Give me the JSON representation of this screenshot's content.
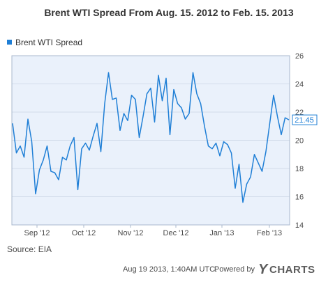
{
  "chart_data": {
    "type": "line",
    "title": "Brent WTI Spread From Aug. 15. 2012 to Feb. 15. 2013",
    "legend": {
      "label": "Brent WTI Spread",
      "position": "top-left"
    },
    "series": [
      {
        "name": "Brent WTI Spread",
        "color": "#1f7fd6",
        "values": [
          21.2,
          19.1,
          19.6,
          18.8,
          21.5,
          19.9,
          16.2,
          17.9,
          18.6,
          19.6,
          17.8,
          17.7,
          17.2,
          18.8,
          18.6,
          19.6,
          20.2,
          16.5,
          19.4,
          19.8,
          19.3,
          20.3,
          21.2,
          19.2,
          22.6,
          24.8,
          22.9,
          23.0,
          20.7,
          21.9,
          21.4,
          23.2,
          22.9,
          20.2,
          21.7,
          23.3,
          23.7,
          21.3,
          24.6,
          22.8,
          24.4,
          20.4,
          23.6,
          22.6,
          22.3,
          21.5,
          21.9,
          24.8,
          23.3,
          22.6,
          21.0,
          19.6,
          19.4,
          19.8,
          18.9,
          19.9,
          19.7,
          19.1,
          16.6,
          18.3,
          15.6,
          16.9,
          17.4,
          19.0,
          18.4,
          17.8,
          19.2,
          21.2,
          23.2,
          21.7,
          20.4,
          21.6,
          21.45
        ]
      }
    ],
    "x_tick_labels": [
      "Sep '12",
      "Oct '12",
      "Nov '12",
      "Dec '12",
      "Jan '13",
      "Feb '13"
    ],
    "y_tick_labels": [
      "14",
      "16",
      "18",
      "20",
      "22",
      "24",
      "26"
    ],
    "ylim": [
      14,
      26
    ],
    "y_axis_side": "right",
    "grid": true,
    "last_value_label": "21.45",
    "source": "Source: EIA",
    "timestamp": "Aug 19 2013, 1:40AM UTC.",
    "powered_by": "Powered by",
    "brand": "YCHARTS",
    "colors": {
      "plot_background": "#eaf1fb",
      "grid": "#d2dcea",
      "plot_border": "#a8b8cc",
      "text": "#4a4a4a",
      "title": "#333333",
      "brand": "#5c5c5c"
    }
  }
}
